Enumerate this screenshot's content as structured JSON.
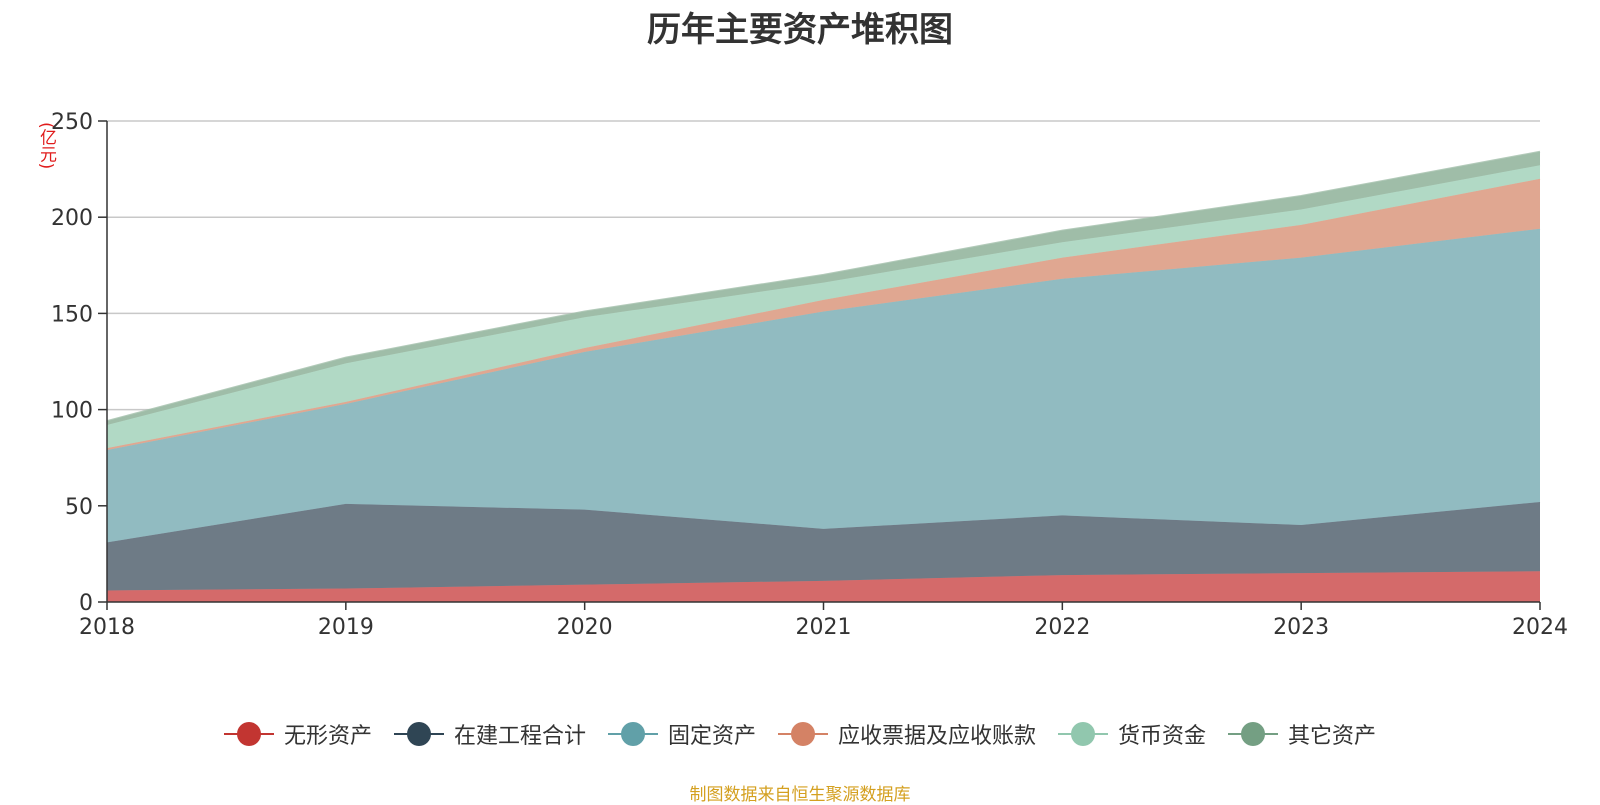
{
  "chart_data": {
    "type": "area",
    "stacked": true,
    "title": "历年主要资产堆积图",
    "unit": "(亿元)",
    "x": [
      "2018",
      "2019",
      "2020",
      "2021",
      "2022",
      "2023",
      "2024"
    ],
    "ylim": [
      0,
      250
    ],
    "yticks": [
      0,
      50,
      100,
      150,
      200,
      250
    ],
    "grid": true,
    "legend_position": "bottom",
    "series": [
      {
        "name": "无形资产",
        "color": "#c23531",
        "area_color": "#d46a6a",
        "values": [
          6,
          7,
          9,
          11,
          14,
          15,
          16
        ]
      },
      {
        "name": "在建工程合计",
        "color": "#2f4554",
        "area_color": "#6e7b86",
        "values": [
          25,
          44,
          39,
          27,
          31,
          25,
          36
        ]
      },
      {
        "name": "固定资产",
        "color": "#61a0a8",
        "area_color": "#91bbc1",
        "values": [
          48,
          52,
          82,
          113,
          123,
          139,
          142
        ]
      },
      {
        "name": "应收票据及应收账款",
        "color": "#d48265",
        "area_color": "#e0a791",
        "values": [
          1,
          1,
          2,
          6,
          11,
          17,
          26
        ]
      },
      {
        "name": "货币资金",
        "color": "#91c7ae",
        "area_color": "#b1d9c5",
        "values": [
          12,
          20,
          16,
          9,
          8,
          8,
          7
        ]
      },
      {
        "name": "其它资产",
        "color": "#749f83",
        "area_color": "#9fbda8",
        "values": [
          2,
          3,
          3,
          4,
          6,
          7,
          7
        ]
      }
    ]
  },
  "source_note": "制图数据来自恒生聚源数据库"
}
